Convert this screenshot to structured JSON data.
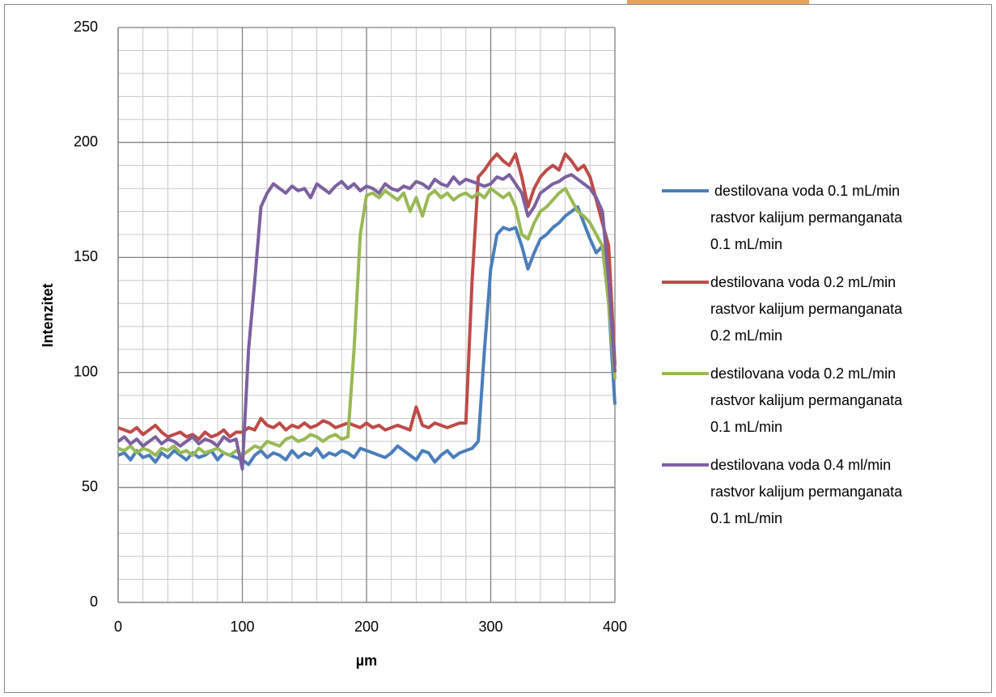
{
  "chart_data": {
    "type": "line",
    "xlabel": "µm",
    "ylabel": "Intenzitet",
    "xlim": [
      0,
      400
    ],
    "xticks": [
      0,
      100,
      200,
      300,
      400
    ],
    "ylim": [
      0,
      250
    ],
    "yticks": [
      0,
      50,
      100,
      150,
      200,
      250
    ],
    "grid": true,
    "legend": "right",
    "x": [
      0,
      5,
      10,
      15,
      20,
      25,
      30,
      35,
      40,
      45,
      50,
      55,
      60,
      65,
      70,
      75,
      80,
      85,
      90,
      95,
      100,
      105,
      110,
      115,
      120,
      125,
      130,
      135,
      140,
      145,
      150,
      155,
      160,
      165,
      170,
      175,
      180,
      185,
      190,
      195,
      200,
      205,
      210,
      215,
      220,
      225,
      230,
      235,
      240,
      245,
      250,
      255,
      260,
      265,
      270,
      275,
      280,
      285,
      290,
      295,
      300,
      305,
      310,
      315,
      320,
      325,
      330,
      335,
      340,
      345,
      350,
      355,
      360,
      365,
      370,
      375,
      380,
      385,
      390,
      395,
      400
    ],
    "series": [
      {
        "name": " destilovana voda 0.1 mL/min rastvor kalijum permanganata 0.1 mL/min",
        "color": "#4a7ebb",
        "values": [
          64,
          65,
          62,
          66,
          63,
          64,
          61,
          65,
          63,
          66,
          64,
          62,
          65,
          63,
          64,
          66,
          62,
          65,
          64,
          63,
          62,
          60,
          64,
          66,
          63,
          65,
          64,
          62,
          66,
          63,
          65,
          64,
          67,
          63,
          65,
          64,
          66,
          65,
          63,
          67,
          66,
          65,
          64,
          63,
          65,
          68,
          66,
          64,
          62,
          66,
          65,
          61,
          64,
          66,
          63,
          65,
          66,
          67,
          70,
          110,
          145,
          160,
          163,
          162,
          163,
          155,
          145,
          152,
          158,
          160,
          163,
          165,
          168,
          170,
          172,
          165,
          158,
          152,
          155,
          130,
          86
        ]
      },
      {
        "name": "destilovana voda 0.2 mL/min rastvor kalijum permanganata 0.2 mL/min",
        "color": "#be4b48",
        "values": [
          76,
          75,
          74,
          76,
          73,
          75,
          77,
          74,
          72,
          73,
          74,
          72,
          73,
          71,
          74,
          72,
          73,
          75,
          72,
          74,
          74,
          76,
          75,
          80,
          77,
          76,
          78,
          75,
          77,
          76,
          78,
          76,
          77,
          79,
          78,
          76,
          77,
          78,
          77,
          76,
          78,
          76,
          77,
          75,
          76,
          77,
          76,
          75,
          85,
          77,
          76,
          78,
          77,
          76,
          77,
          78,
          78,
          140,
          185,
          188,
          192,
          195,
          192,
          190,
          195,
          185,
          172,
          180,
          185,
          188,
          190,
          188,
          195,
          192,
          188,
          190,
          185,
          175,
          165,
          155,
          103
        ]
      },
      {
        "name": "destilovana voda 0.2 mL/min rastvor kalijum permanganata 0.1 mL/min",
        "color": "#98b954",
        "values": [
          67,
          66,
          68,
          65,
          67,
          66,
          64,
          67,
          66,
          68,
          65,
          66,
          64,
          67,
          65,
          66,
          67,
          65,
          64,
          66,
          64,
          66,
          68,
          67,
          70,
          69,
          68,
          71,
          72,
          70,
          71,
          73,
          72,
          70,
          72,
          73,
          71,
          72,
          110,
          160,
          177,
          178,
          176,
          179,
          177,
          175,
          178,
          170,
          176,
          168,
          177,
          179,
          176,
          178,
          175,
          177,
          178,
          176,
          178,
          176,
          180,
          178,
          176,
          178,
          172,
          160,
          158,
          165,
          170,
          172,
          175,
          178,
          180,
          175,
          170,
          168,
          165,
          160,
          155,
          130,
          97
        ]
      },
      {
        "name": "destilovana voda 0.4 ml/min rastvor kalijum permanganata 0.1 mL/min",
        "color": "#7d60a0",
        "values": [
          70,
          72,
          69,
          71,
          68,
          70,
          72,
          69,
          71,
          70,
          68,
          70,
          72,
          69,
          71,
          70,
          68,
          72,
          70,
          71,
          58,
          110,
          140,
          172,
          178,
          182,
          180,
          178,
          181,
          179,
          180,
          176,
          182,
          180,
          178,
          181,
          183,
          180,
          182,
          179,
          181,
          180,
          178,
          182,
          180,
          179,
          181,
          180,
          183,
          182,
          180,
          184,
          182,
          181,
          185,
          182,
          184,
          183,
          182,
          181,
          182,
          185,
          184,
          186,
          182,
          178,
          168,
          172,
          178,
          180,
          182,
          183,
          185,
          186,
          184,
          182,
          180,
          176,
          170,
          140,
          100
        ]
      }
    ]
  }
}
